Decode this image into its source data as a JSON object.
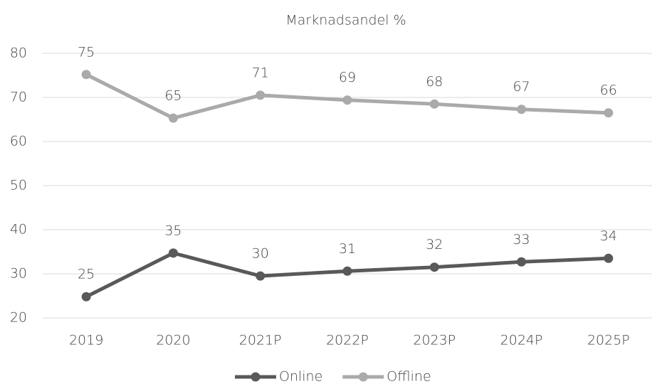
{
  "chart_data": {
    "type": "line",
    "title": "Marknadsandel %",
    "categories": [
      "2019",
      "2020",
      "2021P",
      "2022P",
      "2023P",
      "2024P",
      "2025P"
    ],
    "series": [
      {
        "name": "Online",
        "color": "#595959",
        "values": [
          24.8,
          34.7,
          29.5,
          30.6,
          31.5,
          32.7,
          33.5
        ],
        "value_labels": [
          "25",
          "35",
          "30",
          "31",
          "32",
          "33",
          "34"
        ]
      },
      {
        "name": "Offline",
        "color": "#aaaaaa",
        "values": [
          75.2,
          65.3,
          70.5,
          69.4,
          68.5,
          67.3,
          66.5
        ],
        "value_labels": [
          "75",
          "65",
          "71",
          "69",
          "68",
          "67",
          "66"
        ]
      }
    ],
    "ylim": [
      20,
      80
    ],
    "yticks": [
      20,
      30,
      40,
      50,
      60,
      70,
      80
    ],
    "grid": true,
    "legend": "bottom"
  }
}
